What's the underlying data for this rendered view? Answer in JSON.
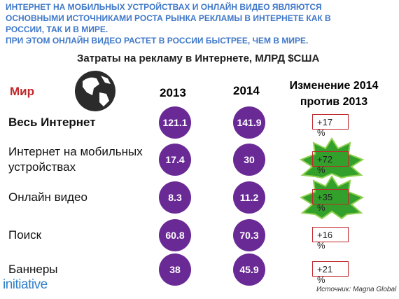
{
  "header": {
    "lines": [
      "ИНТЕРНЕТ НА МОБИЛЬНЫХ УСТРОЙСТВАХ И ОНЛАЙН ВИДЕО ЯВЛЯЮТСЯ",
      "ОСНОВНЫМИ ИСТОЧНИКАМИ РОСТА РЫНКА РЕКЛАМЫ В ИНТЕРНЕТЕ КАК В",
      "РОССИИ, ТАК И В МИРЕ.",
      "ПРИ ЭТОМ ОНЛАЙН ВИДЕО РАСТЕТ В РОССИИ БЫСТРЕЕ, ЧЕМ В МИРЕ."
    ]
  },
  "title": "Затраты на рекламу в Интернете, МЛРД $США",
  "table": {
    "columns": [
      "Мир",
      "2013",
      "2014",
      "Изменение 2014 против 2013"
    ],
    "rows": [
      {
        "label": "Весь Интернет",
        "v2013": 121.1,
        "v2014": 141.9,
        "change": "+17 %"
      },
      {
        "label": "Интернет на мобильных устройствах",
        "v2013": 17.4,
        "v2014": 30,
        "change": "+72 %"
      },
      {
        "label": "Онлайн видео",
        "v2013": 8.3,
        "v2014": 11.2,
        "change": "+35 %"
      },
      {
        "label": "Поиск",
        "v2013": 60.8,
        "v2014": 70.3,
        "change": "+16 %"
      },
      {
        "label": "Баннеры",
        "v2013": 38,
        "v2014": 45.9,
        "change": "+21 %"
      }
    ]
  },
  "footer": {
    "logo": "initiative",
    "source": "Источник: Magna Global"
  }
}
